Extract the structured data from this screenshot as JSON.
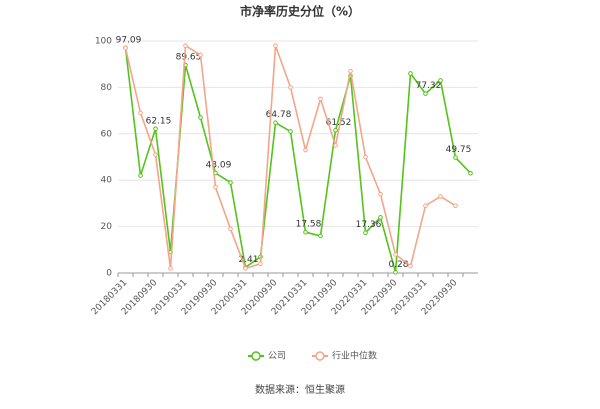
{
  "chart_data": {
    "type": "line",
    "title": "市净率历史分位（%）",
    "categories": [
      "20180331",
      null,
      "20180930",
      null,
      "20190331",
      null,
      "20190930",
      null,
      "20200331",
      null,
      "20200930",
      null,
      "20210331",
      null,
      "20210930",
      null,
      "20220331",
      null,
      "20220930",
      null,
      "20230331",
      null,
      "20230930",
      null
    ],
    "series": [
      {
        "name": "公司",
        "color": "#52c41a",
        "values": [
          97.09,
          42,
          62.15,
          9,
          89.65,
          67,
          43.09,
          39,
          2.41,
          7,
          64.78,
          61,
          17.58,
          16,
          61.52,
          85,
          17.36,
          24,
          0.28,
          86,
          77.32,
          83,
          49.75,
          43
        ],
        "value_labels": [
          "97.09",
          null,
          "62.15",
          null,
          "89.65",
          null,
          "43.09",
          null,
          "2.41",
          null,
          "64.78",
          null,
          "17.58",
          null,
          "61.52",
          null,
          "17.36",
          null,
          "0.28",
          null,
          "77.32",
          null,
          "49.75",
          null
        ]
      },
      {
        "name": "行业中位数",
        "color": "#f4a58a",
        "values": [
          97,
          69,
          51,
          2,
          98,
          94,
          37,
          19,
          2,
          4,
          98,
          80,
          53,
          75,
          55,
          87,
          50,
          34,
          8,
          3,
          29,
          33,
          29,
          null
        ]
      }
    ],
    "ylim": [
      0,
      100
    ],
    "yticks": [
      0,
      20,
      40,
      60,
      80,
      100
    ],
    "grid": true,
    "source": "数据来源：恒生聚源"
  }
}
